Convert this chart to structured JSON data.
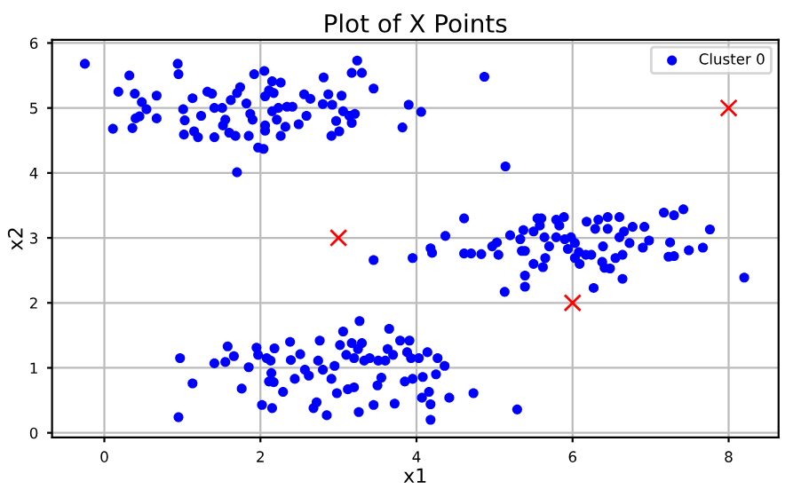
{
  "chart_data": {
    "type": "scatter",
    "title": "Plot of X Points",
    "xlabel": "x1",
    "ylabel": "x2",
    "xlim": [
      -0.67,
      8.64
    ],
    "ylim": [
      -0.07,
      6.05
    ],
    "xticks": [
      0,
      2,
      4,
      6,
      8
    ],
    "yticks": [
      0,
      1,
      2,
      3,
      4,
      5,
      6
    ],
    "grid": true,
    "legend": "top right",
    "series": [
      {
        "name": "Cluster 0",
        "color": "#0000ff",
        "marker": "circle",
        "x": [
          -0.25,
          0.94,
          0.95,
          0.32,
          0.18,
          0.39,
          0.67,
          0.48,
          0.54,
          0.45,
          0.67,
          0.4,
          0.11,
          0.36,
          1.01,
          1.13,
          1.03,
          1.24,
          1.02,
          1.15,
          1.2,
          1.41,
          1.32,
          1.38,
          1.41,
          1.51,
          1.55,
          1.52,
          1.6,
          1.68,
          1.62,
          1.7,
          1.74,
          1.7,
          1.85,
          1.82,
          1.87,
          1.9,
          1.92,
          2.05,
          2.06,
          2.15,
          2.26,
          2.11,
          2.17,
          1.97,
          2.04,
          2.06,
          2.06,
          2.15,
          2.23,
          2.34,
          2.41,
          2.21,
          2.32,
          2.26,
          2.49,
          2.56,
          2.64,
          2.59,
          2.81,
          2.87,
          3.04,
          2.8,
          2.92,
          2.97,
          3.01,
          2.91,
          3.06,
          3.14,
          3.21,
          3.17,
          3.24,
          3.17,
          3.3,
          3.45,
          3.9,
          4.06,
          3.82,
          4.87,
          5.14,
          3.45,
          3.95,
          4.18,
          4.2,
          4.37,
          4.61,
          4.61,
          4.7,
          4.83,
          4.97,
          5.03,
          5.05,
          5.2,
          5.13,
          5.33,
          5.37,
          5.35,
          5.39,
          5.39,
          5.39,
          5.5,
          5.55,
          5.6,
          5.58,
          5.64,
          5.5,
          5.62,
          5.65,
          5.7,
          5.79,
          5.83,
          5.89,
          5.79,
          5.9,
          5.94,
          5.98,
          6.03,
          6.08,
          6.09,
          6.03,
          6.17,
          6.18,
          6.24,
          6.29,
          6.33,
          6.45,
          6.6,
          6.39,
          6.45,
          6.27,
          6.38,
          6.41,
          6.48,
          6.55,
          6.6,
          6.64,
          6.66,
          6.73,
          6.77,
          6.64,
          6.92,
          6.9,
          6.98,
          7.17,
          7.3,
          7.42,
          7.25,
          7.23,
          7.3,
          7.49,
          7.67,
          7.76,
          8.2,
          0.97,
          1.13,
          0.95,
          1.41,
          1.55,
          1.58,
          1.66,
          1.76,
          1.85,
          1.95,
          1.97,
          2.08,
          2.13,
          2.18,
          2.14,
          2.11,
          2.17,
          2.02,
          2.15,
          2.29,
          2.38,
          2.39,
          2.44,
          2.51,
          2.57,
          2.62,
          2.68,
          2.72,
          2.76,
          2.74,
          2.8,
          2.85,
          2.91,
          2.95,
          2.98,
          3.02,
          3.06,
          3.1,
          3.12,
          3.17,
          3.2,
          3.2,
          3.25,
          3.27,
          3.3,
          3.26,
          3.33,
          3.4,
          3.45,
          3.5,
          3.55,
          3.51,
          3.6,
          3.65,
          3.63,
          3.7,
          3.72,
          3.79,
          3.85,
          3.88,
          3.91,
          3.95,
          3.93,
          4.03,
          4.08,
          4.07,
          4.16,
          4.14,
          4.18,
          4.18,
          4.25,
          4.27,
          4.36,
          4.42,
          4.73,
          5.29
        ],
        "values": [
          5.68,
          5.68,
          5.52,
          5.5,
          5.25,
          5.22,
          5.19,
          5.09,
          4.98,
          4.87,
          4.84,
          4.84,
          4.68,
          4.69,
          4.98,
          5.15,
          4.81,
          4.88,
          4.59,
          4.64,
          4.55,
          4.55,
          5.25,
          5.22,
          5.0,
          5.0,
          4.82,
          4.73,
          4.62,
          4.57,
          5.12,
          5.23,
          5.32,
          4.01,
          4.57,
          5.07,
          4.91,
          4.82,
          5.52,
          5.57,
          5.18,
          5.41,
          5.39,
          5.27,
          5.23,
          4.39,
          4.37,
          4.73,
          4.65,
          4.95,
          5.0,
          5.02,
          5.02,
          4.82,
          4.71,
          4.57,
          4.75,
          5.21,
          5.14,
          4.88,
          5.47,
          5.21,
          5.19,
          5.06,
          5.05,
          4.8,
          4.64,
          4.57,
          4.95,
          4.88,
          4.91,
          4.77,
          5.73,
          5.54,
          5.54,
          5.3,
          5.05,
          4.94,
          4.7,
          5.48,
          4.1,
          2.66,
          2.69,
          2.84,
          2.77,
          3.03,
          3.3,
          2.76,
          2.76,
          2.75,
          2.87,
          2.93,
          2.74,
          3.04,
          2.17,
          2.98,
          3.12,
          2.8,
          2.8,
          2.42,
          2.25,
          3.1,
          3.3,
          3.3,
          3.19,
          3.01,
          2.6,
          2.55,
          2.69,
          2.87,
          3.28,
          3.19,
          3.32,
          3.01,
          2.98,
          2.83,
          3.01,
          2.92,
          2.78,
          2.6,
          2.69,
          2.74,
          3.25,
          2.74,
          3.14,
          3.28,
          3.32,
          3.32,
          2.87,
          3.14,
          2.23,
          2.63,
          2.54,
          2.53,
          2.69,
          3.01,
          2.74,
          3.1,
          2.92,
          3.17,
          2.37,
          3.17,
          2.85,
          2.96,
          3.39,
          3.35,
          3.44,
          2.93,
          2.71,
          2.72,
          2.81,
          2.85,
          3.13,
          2.39,
          1.15,
          0.76,
          0.24,
          1.07,
          1.09,
          1.33,
          1.18,
          0.68,
          1.01,
          1.31,
          1.2,
          1.15,
          1.11,
          1.3,
          0.92,
          0.79,
          0.78,
          0.43,
          0.38,
          0.63,
          1.4,
          1.12,
          0.83,
          1.21,
          0.97,
          0.88,
          0.38,
          0.47,
          1.42,
          1.11,
          0.97,
          0.27,
          0.83,
          1.03,
          0.61,
          1.35,
          1.56,
          1.2,
          0.67,
          1.38,
          0.7,
          1.15,
          1.29,
          1.72,
          1.38,
          0.32,
          1.11,
          1.15,
          0.43,
          0.73,
          0.85,
          1.11,
          1.11,
          1.6,
          1.29,
          1.2,
          0.45,
          1.42,
          0.79,
          1.24,
          1.42,
          0.83,
          1.15,
          1.15,
          0.86,
          0.54,
          0.63,
          1.24,
          0.44,
          0.2,
          0.9,
          1.15,
          1.03,
          0.54,
          0.61,
          0.36
        ]
      },
      {
        "color": "#ff0000",
        "marker": "cross",
        "x": [
          3,
          6,
          8
        ],
        "values": [
          3,
          2,
          5
        ]
      }
    ]
  }
}
